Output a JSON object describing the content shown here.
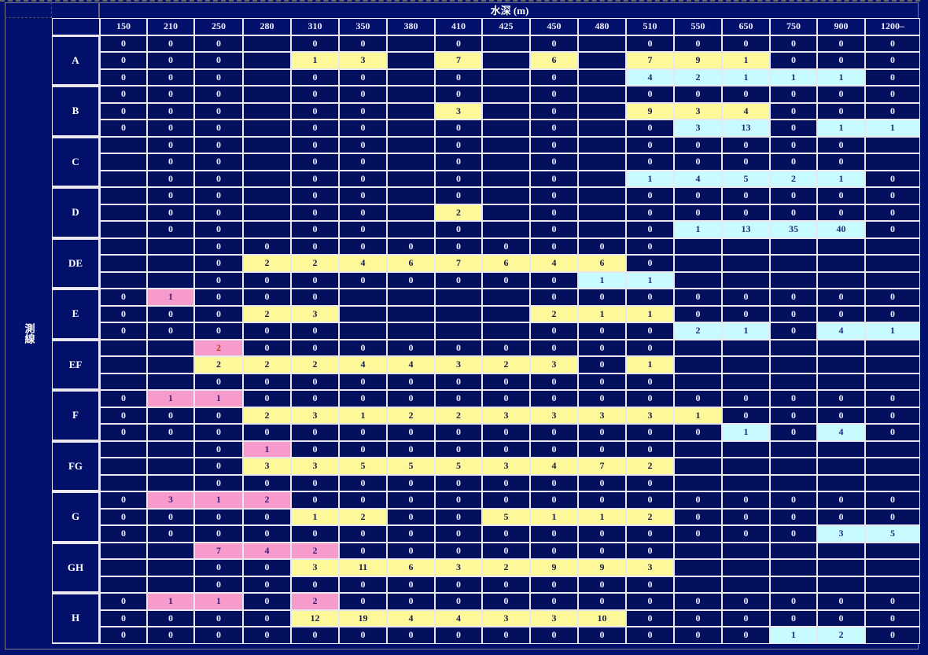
{
  "header": {
    "title": "水深 (m)",
    "side_label": "測線"
  },
  "columns": [
    "150",
    "210",
    "250",
    "280",
    "310",
    "350",
    "380",
    "410",
    "425",
    "450",
    "480",
    "510",
    "550",
    "650",
    "750",
    "900",
    "1200–"
  ],
  "legend_codes": {
    "y": "#fdf89a",
    "c": "#c8fbff",
    "p": "#f79bcc",
    "pr": "#f79bcc (red text)",
    "cell_bg": "#040f5e",
    "page_bg": "#02106e"
  },
  "groups": [
    {
      "label": "A",
      "rows": [
        [
          "0",
          "0",
          "0",
          "",
          "0",
          "0",
          "",
          "0",
          "",
          "0",
          "",
          "0",
          "0",
          "0",
          "0",
          "0",
          "0"
        ],
        [
          "0",
          "0",
          "0",
          "",
          "1:y",
          "3:y",
          "",
          "7:y",
          "",
          "6:y",
          "",
          "7:y",
          "9:y",
          "1:y",
          "0",
          "0",
          "0"
        ],
        [
          "0",
          "0",
          "0",
          "",
          "0",
          "0",
          "",
          "0",
          "",
          "0",
          "",
          "4:c",
          "2:c",
          "1:c",
          "1:c",
          "1:c",
          "0"
        ]
      ]
    },
    {
      "label": "B",
      "rows": [
        [
          "0",
          "0",
          "0",
          "",
          "0",
          "0",
          "",
          "0",
          "",
          "0",
          "",
          "0",
          "0",
          "0",
          "0",
          "0",
          "0"
        ],
        [
          "0",
          "0",
          "0",
          "",
          "0",
          "0",
          "",
          "3:y",
          "",
          "0",
          "",
          "9:y",
          "3:y",
          "4:y",
          "0",
          "0",
          "0"
        ],
        [
          "0",
          "0",
          "0",
          "",
          "0",
          "0",
          "",
          "0",
          "",
          "0",
          "",
          "0",
          "3:c",
          "13:c",
          "0",
          "1:c",
          "1:c"
        ]
      ]
    },
    {
      "label": "C",
      "rows": [
        [
          "",
          "0",
          "0",
          "",
          "0",
          "0",
          "",
          "0",
          "",
          "0",
          "",
          "0",
          "0",
          "0",
          "0",
          "0",
          ""
        ],
        [
          "",
          "0",
          "0",
          "",
          "0",
          "0",
          "",
          "0",
          "",
          "0",
          "",
          "0",
          "0",
          "0",
          "0",
          "0",
          ""
        ],
        [
          "",
          "0",
          "0",
          "",
          "0",
          "0",
          "",
          "0",
          "",
          "0",
          "",
          "1:c",
          "4:c",
          "5:c",
          "2:c",
          "1:c",
          "0"
        ]
      ]
    },
    {
      "label": "D",
      "rows": [
        [
          "",
          "0",
          "0",
          "",
          "0",
          "0",
          "",
          "0",
          "",
          "0",
          "",
          "0",
          "0",
          "0",
          "0",
          "0",
          "0"
        ],
        [
          "",
          "0",
          "0",
          "",
          "0",
          "0",
          "",
          "2:y",
          "",
          "0",
          "",
          "0",
          "0",
          "0",
          "0",
          "0",
          "0"
        ],
        [
          "",
          "0",
          "0",
          "",
          "0",
          "0",
          "",
          "0",
          "",
          "0",
          "",
          "0",
          "1:c",
          "13:c",
          "35:c",
          "40:c",
          "0"
        ]
      ]
    },
    {
      "label": "DE",
      "rows": [
        [
          "",
          "",
          "0",
          "0",
          "0",
          "0",
          "0",
          "0",
          "0",
          "0",
          "0",
          "0",
          "",
          "",
          "",
          "",
          ""
        ],
        [
          "",
          "",
          "0",
          "2:y",
          "2:y",
          "4:y",
          "6:y",
          "7:y",
          "6:y",
          "4:y",
          "6:y",
          "0",
          "",
          "",
          "",
          "",
          ""
        ],
        [
          "",
          "",
          "0",
          "0",
          "0",
          "0",
          "0",
          "0",
          "0",
          "0",
          "1:c",
          "1:c",
          "",
          "",
          "",
          "",
          ""
        ]
      ]
    },
    {
      "label": "E",
      "rows": [
        [
          "0",
          "1:p",
          "0",
          "0",
          "0",
          "",
          "",
          "",
          "",
          "0",
          "0",
          "0",
          "0",
          "0",
          "0",
          "0",
          "0"
        ],
        [
          "0",
          "0",
          "0",
          "2:y",
          "3:y",
          "",
          "",
          "",
          "",
          "2:y",
          "1:y",
          "1:y",
          "0",
          "0",
          "0",
          "0",
          "0"
        ],
        [
          "0",
          "0",
          "0",
          "0",
          "0",
          "",
          "",
          "",
          "",
          "0",
          "0",
          "0",
          "2:c",
          "1:c",
          "0",
          "4:c",
          "1:c"
        ]
      ]
    },
    {
      "label": "EF",
      "rows": [
        [
          "",
          "",
          "2:pr",
          "0",
          "0",
          "0",
          "0",
          "0",
          "0",
          "0",
          "0",
          "0",
          "",
          "",
          "",
          "",
          ""
        ],
        [
          "",
          "",
          "2:y",
          "2:y",
          "2:y",
          "4:y",
          "4:y",
          "3:y",
          "2:y",
          "3:y",
          "0",
          "1:y",
          "",
          "",
          "",
          "",
          ""
        ],
        [
          "",
          "",
          "0",
          "0",
          "0",
          "0",
          "0",
          "0",
          "0",
          "0",
          "0",
          "0",
          "",
          "",
          "",
          "",
          ""
        ]
      ]
    },
    {
      "label": "F",
      "rows": [
        [
          "0",
          "1:p",
          "1:p",
          "0",
          "0",
          "0",
          "0",
          "0",
          "0",
          "0",
          "0",
          "0",
          "0",
          "0",
          "0",
          "0",
          "0"
        ],
        [
          "0",
          "0",
          "0",
          "2:y",
          "3:y",
          "1:y",
          "2:y",
          "2:y",
          "3:y",
          "3:y",
          "3:y",
          "3:y",
          "1:y",
          "0",
          "0",
          "0",
          "0"
        ],
        [
          "0",
          "0",
          "0",
          "0",
          "0",
          "0",
          "0",
          "0",
          "0",
          "0",
          "0",
          "0",
          "0",
          "1:c",
          "0",
          "4:c",
          "0"
        ]
      ]
    },
    {
      "label": "FG",
      "rows": [
        [
          "",
          "",
          "0",
          "1:p",
          "0",
          "0",
          "0",
          "0",
          "0",
          "0",
          "0",
          "0",
          "",
          "",
          "",
          "",
          ""
        ],
        [
          "",
          "",
          "0",
          "3:y",
          "3:y",
          "5:y",
          "5:y",
          "5:y",
          "3:y",
          "4:y",
          "7:y",
          "2:y",
          "",
          "",
          "",
          "",
          ""
        ],
        [
          "",
          "",
          "0",
          "0",
          "0",
          "0",
          "0",
          "0",
          "0",
          "0",
          "0",
          "0",
          "",
          "",
          "",
          "",
          ""
        ]
      ]
    },
    {
      "label": "G",
      "rows": [
        [
          "0",
          "3:p",
          "1:p",
          "2:p",
          "0",
          "0",
          "0",
          "0",
          "0",
          "0",
          "0",
          "0",
          "0",
          "0",
          "0",
          "0",
          "0"
        ],
        [
          "0",
          "0",
          "0",
          "0",
          "1:y",
          "2:y",
          "0",
          "0",
          "5:y",
          "1:y",
          "1:y",
          "2:y",
          "0",
          "0",
          "0",
          "0",
          "0"
        ],
        [
          "0",
          "0",
          "0",
          "0",
          "0",
          "0",
          "0",
          "0",
          "0",
          "0",
          "0",
          "0",
          "0",
          "0",
          "0",
          "3:c",
          "5:c"
        ]
      ]
    },
    {
      "label": "GH",
      "rows": [
        [
          "",
          "",
          "7:p",
          "4:p",
          "2:p",
          "0",
          "0",
          "0",
          "0",
          "0",
          "0",
          "0",
          "",
          "",
          "",
          "",
          ""
        ],
        [
          "",
          "",
          "0",
          "0",
          "3:y",
          "11:y",
          "6:y",
          "3:y",
          "2:y",
          "9:y",
          "9:y",
          "3:y",
          "",
          "",
          "",
          "",
          ""
        ],
        [
          "",
          "",
          "0",
          "0",
          "0",
          "0",
          "0",
          "0",
          "0",
          "0",
          "0",
          "0",
          "",
          "",
          "",
          "",
          ""
        ]
      ]
    },
    {
      "label": "H",
      "rows": [
        [
          "0",
          "1:p",
          "1:p",
          "0",
          "2:p",
          "0",
          "0",
          "0",
          "0",
          "0",
          "0",
          "0",
          "0",
          "0",
          "0",
          "0",
          "0"
        ],
        [
          "0",
          "0",
          "0",
          "0",
          "12:y",
          "19:y",
          "4:y",
          "4:y",
          "3:y",
          "3:y",
          "10:y",
          "0",
          "0",
          "0",
          "0",
          "0",
          "0"
        ],
        [
          "0",
          "0",
          "0",
          "0",
          "0",
          "0",
          "0",
          "0",
          "0",
          "0",
          "0",
          "0",
          "0",
          "0",
          "1:c",
          "2:c",
          "0"
        ]
      ]
    }
  ]
}
